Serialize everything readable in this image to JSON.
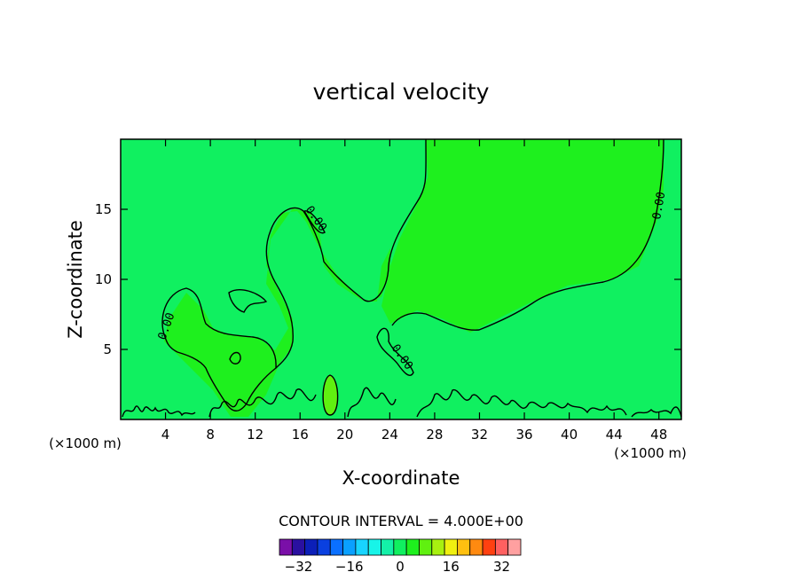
{
  "chart_data": {
    "type": "contour",
    "title": "vertical velocity",
    "xlabel": "X-coordinate",
    "ylabel": "Z-coordinate",
    "x_unit": "(×1000 m)",
    "y_unit": "(×1000 m)",
    "xlim": [
      0,
      50
    ],
    "ylim": [
      0,
      20
    ],
    "x_ticks": [
      4,
      8,
      12,
      16,
      20,
      24,
      28,
      32,
      36,
      40,
      44,
      48
    ],
    "y_ticks": [
      5,
      10,
      15
    ],
    "contour_interval_text": "CONTOUR INTERVAL = 4.000E+00",
    "contour_labels": [
      "0.00",
      "0.00",
      "0.00",
      "0.00"
    ],
    "colorbar": {
      "levels": [
        -36,
        -32,
        -28,
        -24,
        -20,
        -16,
        -12,
        -8,
        -4,
        0,
        4,
        8,
        12,
        16,
        20,
        24,
        28,
        32,
        36
      ],
      "colors": [
        "#7a0fa8",
        "#2a10a0",
        "#0c1fb8",
        "#0a40e0",
        "#0a70ff",
        "#0aa0ff",
        "#18d4ff",
        "#18f4e8",
        "#14f0a8",
        "#10f060",
        "#1ef01e",
        "#60f010",
        "#a8f010",
        "#f0f010",
        "#ffc010",
        "#ff8a10",
        "#ff4010",
        "#ff6060",
        "#ffa0a0"
      ],
      "tick_labels": [
        "−32",
        "−16",
        "0",
        "16",
        "32"
      ],
      "tick_values": [
        -32,
        -16,
        0,
        16,
        32
      ]
    },
    "field_color_main": "#1ef01e",
    "field_color_low": "#10f060",
    "field_color_high": "#60f010"
  }
}
